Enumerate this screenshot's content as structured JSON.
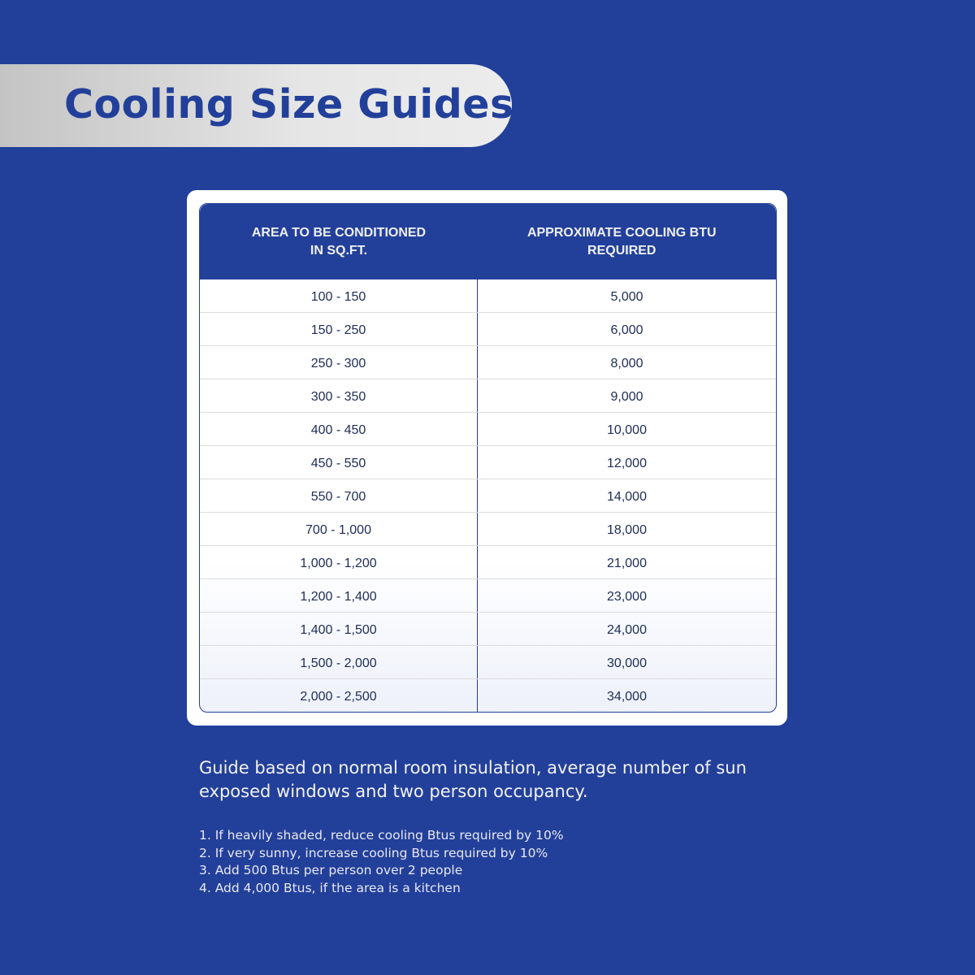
{
  "title": "Cooling Size Guides",
  "table": {
    "headers": [
      "AREA TO BE CONDITIONED\nIN SQ.FT.",
      "APPROXIMATE COOLING BTU\nREQUIRED"
    ],
    "rows": [
      [
        "100 - 150",
        "5,000"
      ],
      [
        "150 - 250",
        "6,000"
      ],
      [
        "250 - 300",
        "8,000"
      ],
      [
        "300 - 350",
        "9,000"
      ],
      [
        "400 - 450",
        "10,000"
      ],
      [
        "450 - 550",
        "12,000"
      ],
      [
        "550 - 700",
        "14,000"
      ],
      [
        "700 - 1,000",
        "18,000"
      ],
      [
        "1,000 - 1,200",
        "21,000"
      ],
      [
        "1,200 - 1,400",
        "23,000"
      ],
      [
        "1,400 - 1,500",
        "24,000"
      ],
      [
        "1,500 - 2,000",
        "30,000"
      ],
      [
        "2,000 - 2,500",
        "34,000"
      ]
    ]
  },
  "note": "Guide based on normal room insulation, average number of sun exposed windows and two person occupancy.",
  "adjustments": [
    "1.  If heavily shaded, reduce cooling Btus required by 10%",
    "2. If very sunny, increase cooling Btus required by 10%",
    "3. Add 500 Btus per person over 2 people",
    "4. Add 4,000 Btus, if the area is a kitchen"
  ],
  "colors": {
    "brand_blue": "#22409a",
    "banner_grey": "#e6e6e6",
    "text_navy": "#1e2c55"
  }
}
